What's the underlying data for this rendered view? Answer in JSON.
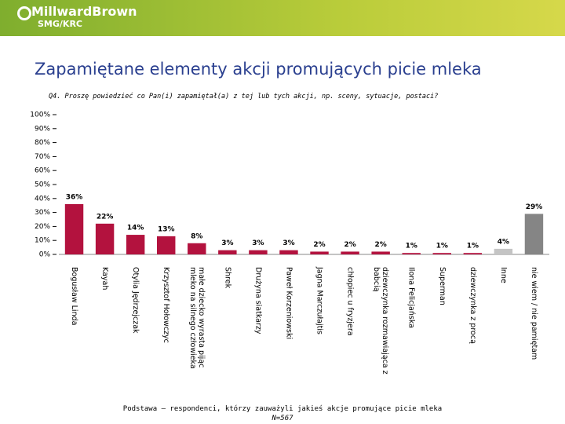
{
  "brand": {
    "name": "MillwardBrown",
    "sub": "SMG/KRC"
  },
  "chart_data": {
    "type": "bar",
    "title": "Zapamiętane elementy akcji promujących picie mleka",
    "subtitle": "Q4. Proszę powiedzieć co Pan(i) zapamiętał(a) z tej lub tych akcji, np. sceny, sytuacje, postaci?",
    "footnotes": [
      "Podstawa – respondenci, którzy zauważyli jakieś akcje promujące picie mleka",
      "N=567"
    ],
    "categories": [
      "Bogusław Linda",
      "Kayah",
      "Otylia Jędrzejczak",
      "Krzysztof Hołowczyc",
      "małe dziecko wyrasta pijąc mleko na silnego człowieka",
      "Shrek",
      "Drużyna siatkarzy",
      "Paweł Korzeniowski",
      "Jagna Marczułajtis",
      "chłopiec u fryzjera",
      "dziewczynka rozmawiająca z babcią",
      "Ilona Felicjańska",
      "Superman",
      "dziewczynka z procą",
      "Inne",
      "nie wiem / nie pamiętam"
    ],
    "values": [
      36,
      22,
      14,
      13,
      8,
      3,
      3,
      3,
      2,
      2,
      2,
      1,
      1,
      1,
      4,
      29
    ],
    "value_labels": [
      "36%",
      "22%",
      "14%",
      "13%",
      "8%",
      "3%",
      "3%",
      "3%",
      "2%",
      "2%",
      "2%",
      "1%",
      "1%",
      "1%",
      "4%",
      "29%"
    ],
    "colors": [
      "#b3123e",
      "#b3123e",
      "#b3123e",
      "#b3123e",
      "#b3123e",
      "#b3123e",
      "#b3123e",
      "#b3123e",
      "#b3123e",
      "#b3123e",
      "#b3123e",
      "#b3123e",
      "#b3123e",
      "#b3123e",
      "#c4c4c4",
      "#858585"
    ],
    "ylim": [
      0,
      100
    ],
    "yticks": [
      {
        "value": 0,
        "label": "0%"
      },
      {
        "value": 10,
        "label": "10%"
      },
      {
        "value": 20,
        "label": "20%"
      },
      {
        "value": 30,
        "label": "30%"
      },
      {
        "value": 40,
        "label": "40%"
      },
      {
        "value": 50,
        "label": "50%"
      },
      {
        "value": 60,
        "label": "60%"
      },
      {
        "value": 70,
        "label": "70%"
      },
      {
        "value": 80,
        "label": "80%"
      },
      {
        "value": 90,
        "label": "90%"
      },
      {
        "value": 100,
        "label": "100%"
      }
    ],
    "grid": false
  }
}
